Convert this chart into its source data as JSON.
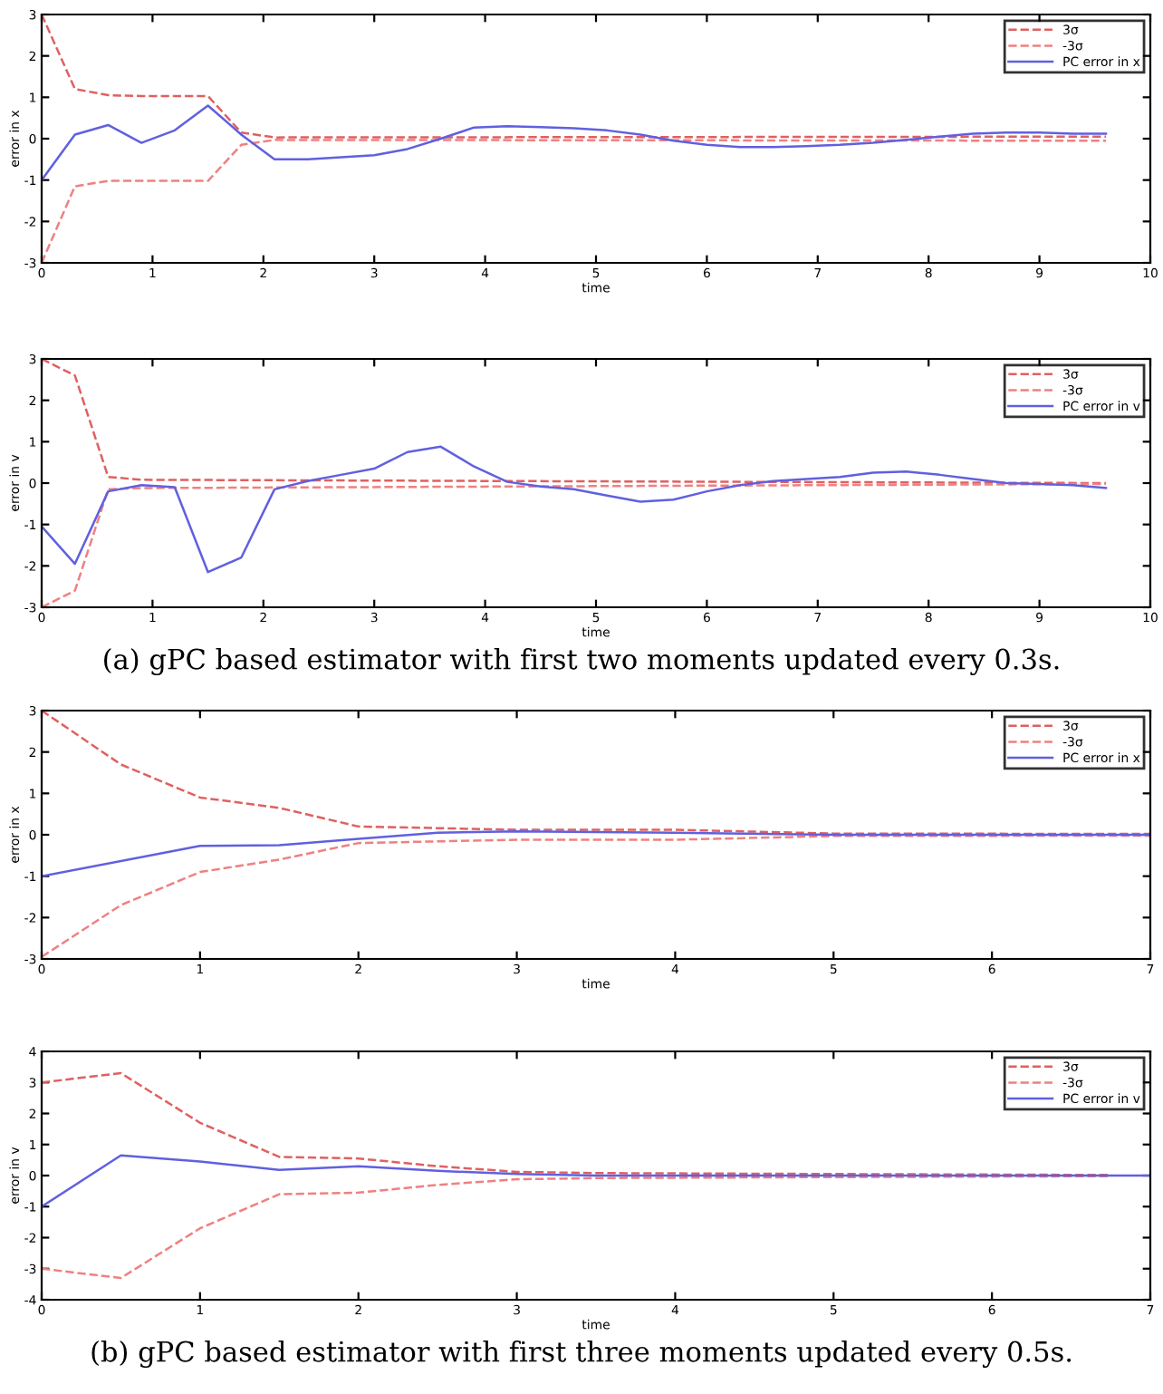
{
  "chart_data": [
    {
      "type": "line",
      "xlabel": "time",
      "ylabel": "error in x",
      "xlim": [
        0,
        10
      ],
      "ylim": [
        -3,
        3
      ],
      "xticks": [
        0,
        1,
        2,
        3,
        4,
        5,
        6,
        7,
        8,
        9,
        10
      ],
      "yticks": [
        -3,
        -2,
        -1,
        0,
        1,
        2,
        3
      ],
      "grid": false,
      "legend": "top right",
      "line_style": "solid",
      "marker": "none",
      "series": [
        {
          "name": "3σ",
          "color": "#e06060",
          "line_style": "dashed",
          "x": [
            0,
            0.3,
            0.6,
            0.9,
            1.2,
            1.5,
            1.8,
            2.1,
            9.6
          ],
          "values": [
            3,
            1.2,
            1.05,
            1.03,
            1.03,
            1.03,
            0.15,
            0.03,
            0.05
          ]
        },
        {
          "name": "-3σ",
          "color": "#f08080",
          "line_style": "dashed",
          "x": [
            0,
            0.3,
            0.6,
            0.9,
            1.2,
            1.5,
            1.8,
            2.1,
            9.6
          ],
          "values": [
            -3,
            -1.15,
            -1.02,
            -1.02,
            -1.02,
            -1.02,
            -0.15,
            -0.03,
            -0.05
          ]
        },
        {
          "name": "PC error in x",
          "color": "#6060e0",
          "x": [
            0,
            0.3,
            0.6,
            0.9,
            1.2,
            1.5,
            1.8,
            2.1,
            2.4,
            2.7,
            3.0,
            3.3,
            3.6,
            3.9,
            4.2,
            4.5,
            4.8,
            5.1,
            5.4,
            5.7,
            6.0,
            6.3,
            6.6,
            6.9,
            7.2,
            7.5,
            7.8,
            8.1,
            8.4,
            8.7,
            9.0,
            9.3,
            9.6
          ],
          "values": [
            -1,
            0.1,
            0.33,
            -0.1,
            0.2,
            0.8,
            0.1,
            -0.5,
            -0.5,
            -0.45,
            -0.4,
            -0.25,
            0,
            0.27,
            0.3,
            0.28,
            0.25,
            0.2,
            0.1,
            -0.05,
            -0.15,
            -0.2,
            -0.2,
            -0.18,
            -0.15,
            -0.1,
            -0.03,
            0.05,
            0.12,
            0.15,
            0.15,
            0.12,
            0.12
          ]
        }
      ]
    },
    {
      "type": "line",
      "xlabel": "time",
      "ylabel": "error in v",
      "xlim": [
        0,
        10
      ],
      "ylim": [
        -3,
        3
      ],
      "xticks": [
        0,
        1,
        2,
        3,
        4,
        5,
        6,
        7,
        8,
        9,
        10
      ],
      "yticks": [
        -3,
        -2,
        -1,
        0,
        1,
        2,
        3
      ],
      "grid": false,
      "legend": "top right",
      "line_style": "solid",
      "marker": "none",
      "annotations": [
        "(a) gPC based estimator with first two moments updated every 0.3s."
      ],
      "series": [
        {
          "name": "3σ",
          "color": "#e06060",
          "line_style": "dashed",
          "x": [
            0,
            0.3,
            0.6,
            0.9,
            9.6
          ],
          "values": [
            3,
            2.6,
            0.15,
            0.08,
            0.0
          ]
        },
        {
          "name": "-3σ",
          "color": "#f08080",
          "line_style": "dashed",
          "x": [
            0,
            0.3,
            0.6,
            0.9,
            9.6
          ],
          "values": [
            -3,
            -2.6,
            -0.15,
            -0.12,
            -0.02
          ]
        },
        {
          "name": "PC error in v",
          "color": "#6060e0",
          "x": [
            0,
            0.3,
            0.6,
            0.9,
            1.2,
            1.5,
            1.8,
            2.1,
            2.4,
            2.7,
            3.0,
            3.3,
            3.6,
            3.9,
            4.2,
            4.5,
            4.8,
            5.1,
            5.4,
            5.7,
            6.0,
            6.3,
            6.6,
            6.9,
            7.2,
            7.5,
            7.8,
            8.1,
            8.4,
            8.7,
            9.0,
            9.3,
            9.6
          ],
          "values": [
            -1.05,
            -1.95,
            -0.2,
            -0.05,
            -0.1,
            -2.15,
            -1.8,
            -0.15,
            0.05,
            0.2,
            0.35,
            0.75,
            0.88,
            0.4,
            0.03,
            -0.08,
            -0.15,
            -0.3,
            -0.45,
            -0.4,
            -0.2,
            -0.05,
            0.05,
            0.1,
            0.15,
            0.25,
            0.28,
            0.2,
            0.1,
            0.0,
            -0.02,
            -0.05,
            -0.12
          ]
        }
      ]
    },
    {
      "type": "line",
      "xlabel": "time",
      "ylabel": "error in x",
      "xlim": [
        0,
        7
      ],
      "ylim": [
        -3,
        3
      ],
      "xticks": [
        0,
        1,
        2,
        3,
        4,
        5,
        6,
        7
      ],
      "yticks": [
        -3,
        -2,
        -1,
        0,
        1,
        2,
        3
      ],
      "grid": false,
      "legend": "top right",
      "line_style": "solid",
      "marker": "none",
      "series": [
        {
          "name": "3σ",
          "color": "#e06060",
          "line_style": "dashed",
          "x": [
            0,
            0.5,
            1,
            1.5,
            2,
            3,
            4,
            5,
            7
          ],
          "values": [
            3,
            1.7,
            0.9,
            0.65,
            0.2,
            0.12,
            0.12,
            0.03,
            0.02
          ]
        },
        {
          "name": "-3σ",
          "color": "#f08080",
          "line_style": "dashed",
          "x": [
            0,
            0.5,
            1,
            1.5,
            2,
            3,
            4,
            5,
            7
          ],
          "values": [
            -2.95,
            -1.7,
            -0.9,
            -0.6,
            -0.2,
            -0.12,
            -0.12,
            -0.03,
            -0.02
          ]
        },
        {
          "name": "PC error in x",
          "color": "#6060e0",
          "x": [
            0,
            1,
            1.5,
            2,
            2.5,
            3,
            4,
            5,
            7
          ],
          "values": [
            -1,
            -0.27,
            -0.25,
            -0.1,
            0.05,
            0.08,
            0.05,
            0,
            0
          ]
        }
      ]
    },
    {
      "type": "line",
      "xlabel": "time",
      "ylabel": "error in v",
      "xlim": [
        0,
        7
      ],
      "ylim": [
        -4,
        4
      ],
      "xticks": [
        0,
        1,
        2,
        3,
        4,
        5,
        6,
        7
      ],
      "yticks": [
        -4,
        -3,
        -2,
        -1,
        0,
        1,
        2,
        3,
        4
      ],
      "grid": false,
      "legend": "top right",
      "line_style": "solid",
      "marker": "none",
      "annotations": [
        "(b) gPC based estimator with first three moments updated every 0.5s."
      ],
      "series": [
        {
          "name": "3σ",
          "color": "#e06060",
          "line_style": "dashed",
          "x": [
            0,
            0.5,
            1,
            1.5,
            2,
            2.5,
            3,
            3.5,
            5,
            6.75
          ],
          "values": [
            3,
            3.3,
            1.7,
            0.6,
            0.55,
            0.3,
            0.12,
            0.08,
            0.05,
            0.02
          ]
        },
        {
          "name": "-3σ",
          "color": "#f08080",
          "line_style": "dashed",
          "x": [
            0,
            0.5,
            1,
            1.5,
            2,
            2.5,
            3,
            3.5,
            5,
            6.75
          ],
          "values": [
            -3,
            -3.3,
            -1.7,
            -0.6,
            -0.55,
            -0.3,
            -0.12,
            -0.08,
            -0.05,
            -0.02
          ]
        },
        {
          "name": "PC error in v",
          "color": "#6060e0",
          "x": [
            0,
            0.5,
            1,
            1.5,
            2,
            2.5,
            3,
            3.5,
            7
          ],
          "values": [
            -1,
            0.65,
            0.45,
            0.18,
            0.3,
            0.15,
            0.05,
            0,
            0
          ]
        }
      ]
    }
  ]
}
